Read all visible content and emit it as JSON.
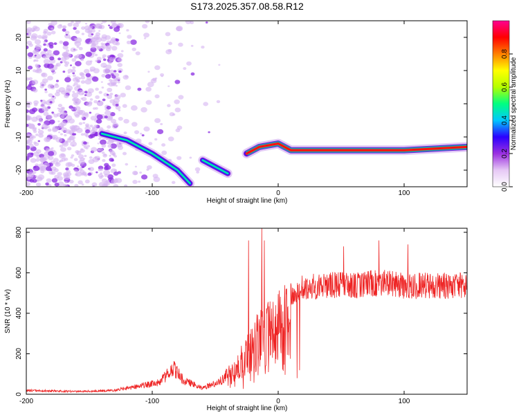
{
  "title": "S173.2025.357.08.58.R12",
  "chart_data": [
    {
      "type": "heatmap",
      "xlabel": "Height of straight line (km)",
      "ylabel": "Frequency (Hz)",
      "xlim": [
        -200,
        150
      ],
      "ylim": [
        -25,
        25
      ],
      "xticks": [
        -200,
        -100,
        0,
        100
      ],
      "yticks": [
        -20,
        -10,
        0,
        10,
        20
      ],
      "colorbar": {
        "label": "Normalized spectral amplitude",
        "range": [
          0,
          1
        ],
        "ticks": [
          "0.0",
          "0.2",
          "0.4",
          "0.6",
          "0.8"
        ],
        "colors": [
          "#ffffff",
          "#e6c8f5",
          "#9b30e0",
          "#2b00ff",
          "#00c8ff",
          "#00ff80",
          "#b4ff00",
          "#ffff00",
          "#ff8000",
          "#ff0000",
          "#ff0090"
        ]
      },
      "features": {
        "noise_region_x": [
          -200,
          -125
        ],
        "descending_track": [
          {
            "x": -140,
            "y": -9
          },
          {
            "x": -120,
            "y": -11
          },
          {
            "x": -100,
            "y": -15
          },
          {
            "x": -80,
            "y": -20
          },
          {
            "x": -70,
            "y": -24
          }
        ],
        "second_track": [
          {
            "x": -60,
            "y": -17
          },
          {
            "x": -50,
            "y": -19
          },
          {
            "x": -40,
            "y": -21
          }
        ],
        "steady_tone": [
          {
            "x": -25,
            "y": -15
          },
          {
            "x": -15,
            "y": -13
          },
          {
            "x": 0,
            "y": -12
          },
          {
            "x": 10,
            "y": -14
          },
          {
            "x": 100,
            "y": -14
          },
          {
            "x": 150,
            "y": -13
          }
        ]
      }
    },
    {
      "type": "line",
      "xlabel": "Height of straight line (km)",
      "ylabel": "SNR (10 * v/v)",
      "xlim": [
        -200,
        150
      ],
      "ylim": [
        0,
        820
      ],
      "xticks": [
        -200,
        -100,
        0,
        100
      ],
      "yticks": [
        0,
        200,
        400,
        600,
        800
      ],
      "color": "#ee2222",
      "envelope": [
        {
          "x": -200,
          "y": 25
        },
        {
          "x": -160,
          "y": 18
        },
        {
          "x": -130,
          "y": 25
        },
        {
          "x": -110,
          "y": 55
        },
        {
          "x": -95,
          "y": 75
        },
        {
          "x": -83,
          "y": 170
        },
        {
          "x": -75,
          "y": 90
        },
        {
          "x": -60,
          "y": 40
        },
        {
          "x": -45,
          "y": 90
        },
        {
          "x": -35,
          "y": 180
        },
        {
          "x": -25,
          "y": 300
        },
        {
          "x": -15,
          "y": 420
        },
        {
          "x": -5,
          "y": 480
        },
        {
          "x": 5,
          "y": 540
        },
        {
          "x": 20,
          "y": 590
        },
        {
          "x": 40,
          "y": 610
        },
        {
          "x": 60,
          "y": 600
        },
        {
          "x": 80,
          "y": 620
        },
        {
          "x": 100,
          "y": 600
        },
        {
          "x": 120,
          "y": 605
        },
        {
          "x": 150,
          "y": 600
        }
      ],
      "spikes": [
        {
          "x": -23.5,
          "y": 760
        },
        {
          "x": -13,
          "y": 820
        },
        {
          "x": -11,
          "y": 760
        },
        {
          "x": 80,
          "y": 760
        },
        {
          "x": 103,
          "y": 740
        },
        {
          "x": 52,
          "y": 730
        }
      ]
    }
  ]
}
